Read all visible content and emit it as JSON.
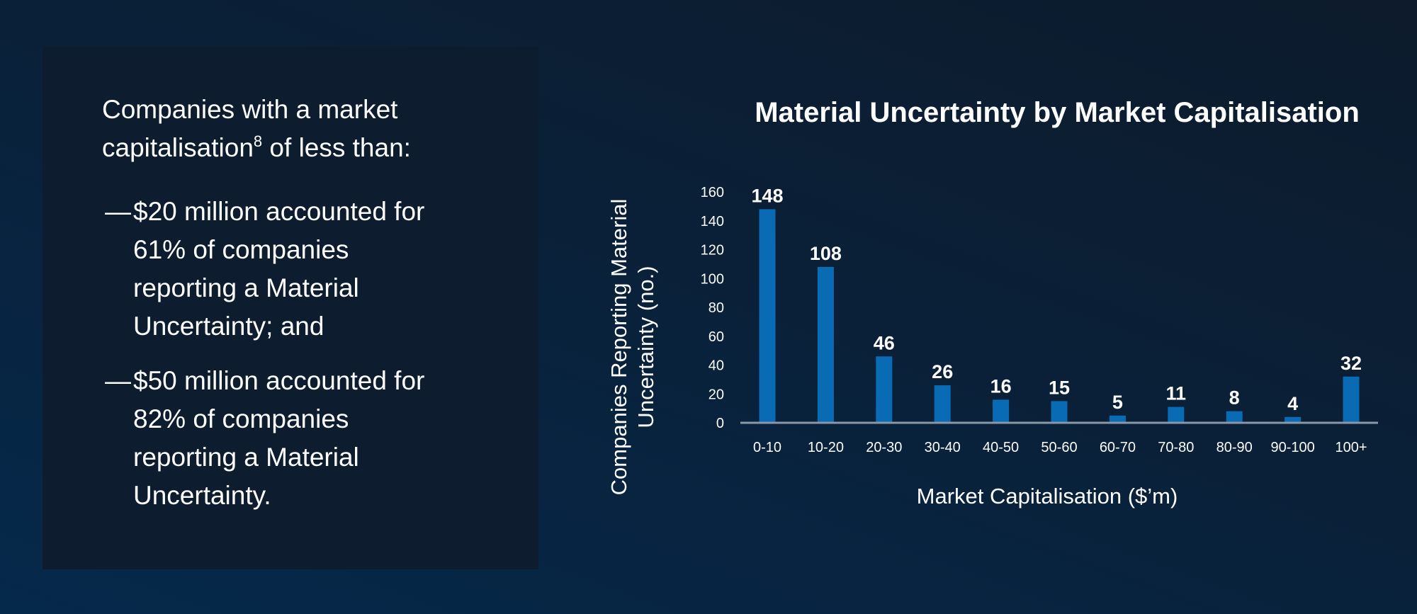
{
  "text_panel": {
    "intro_part1": "Companies with a market capitalisation",
    "intro_footnote": "8",
    "intro_part2": " of less than:",
    "bullet_marker": "—",
    "bullets": [
      "$20 million accounted for 61% of companies reporting a Material Uncertainty; and",
      "$50 million accounted for 82% of companies reporting a Material Uncertainty."
    ]
  },
  "chart_data": {
    "type": "bar",
    "title": "Material Uncertainty by Market Capitalisation",
    "xlabel": "Market Capitalisation ($’m)",
    "ylabel_lines": [
      "Companies Reporting Material",
      "Uncertainty (no.)"
    ],
    "categories": [
      "0-10",
      "10-20",
      "20-30",
      "30-40",
      "40-50",
      "50-60",
      "60-70",
      "70-80",
      "80-90",
      "90-100",
      "100+"
    ],
    "values": [
      148,
      108,
      46,
      26,
      16,
      15,
      5,
      11,
      8,
      4,
      32
    ],
    "yticks": [
      0,
      20,
      40,
      60,
      80,
      100,
      120,
      140,
      160
    ],
    "ylim": [
      0,
      160
    ],
    "grid": false,
    "legend": "none",
    "colors": {
      "bar": "#0a6bb5",
      "axis": "#8a97a6"
    }
  }
}
